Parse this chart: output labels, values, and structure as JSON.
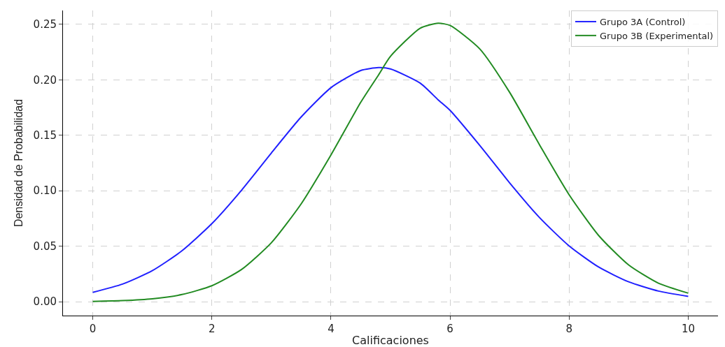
{
  "chart_data": {
    "type": "line",
    "xlabel": "Calificaciones",
    "ylabel": "Densidad de Probabilidad",
    "x": [
      0,
      0.5,
      1,
      1.5,
      2,
      2.5,
      3,
      3.5,
      4,
      4.5,
      4.8,
      5,
      5.5,
      5.8,
      6,
      6.5,
      7,
      7.5,
      8,
      8.5,
      9,
      9.5,
      10
    ],
    "series": [
      {
        "name": "Grupo 3A (Control)",
        "color": "#2020ff",
        "values": [
          0.0084,
          0.0159,
          0.028,
          0.046,
          0.0704,
          0.1006,
          0.1341,
          0.1665,
          0.1929,
          0.2084,
          0.211,
          0.2098,
          0.197,
          0.182,
          0.1725,
          0.1408,
          0.1072,
          0.076,
          0.0503,
          0.0311,
          0.0179,
          0.0096,
          0.0048
        ]
      },
      {
        "name": "Grupo 3B (Experimental)",
        "color": "#228b22",
        "values": [
          0.0003,
          0.001,
          0.0026,
          0.0065,
          0.0144,
          0.0291,
          0.0532,
          0.0882,
          0.1323,
          0.1797,
          0.2045,
          0.2212,
          0.2466,
          0.251,
          0.249,
          0.2278,
          0.1888,
          0.1417,
          0.0964,
          0.0594,
          0.0331,
          0.0167,
          0.0077
        ]
      }
    ],
    "xlim": [
      -0.5,
      10.5
    ],
    "xticks": [
      0,
      2,
      4,
      6,
      8,
      10
    ],
    "ylim": [
      -0.0125,
      0.2625
    ],
    "yticks": [
      {
        "value": 0,
        "label": "0.00"
      },
      {
        "value": 0.05,
        "label": "0.05"
      },
      {
        "value": 0.1,
        "label": "0.10"
      },
      {
        "value": 0.15,
        "label": "0.15"
      },
      {
        "value": 0.2,
        "label": "0.20"
      },
      {
        "value": 0.25,
        "label": "0.25"
      }
    ],
    "grid": true,
    "legend": "top right",
    "marker": "none",
    "line_style": "solid"
  }
}
